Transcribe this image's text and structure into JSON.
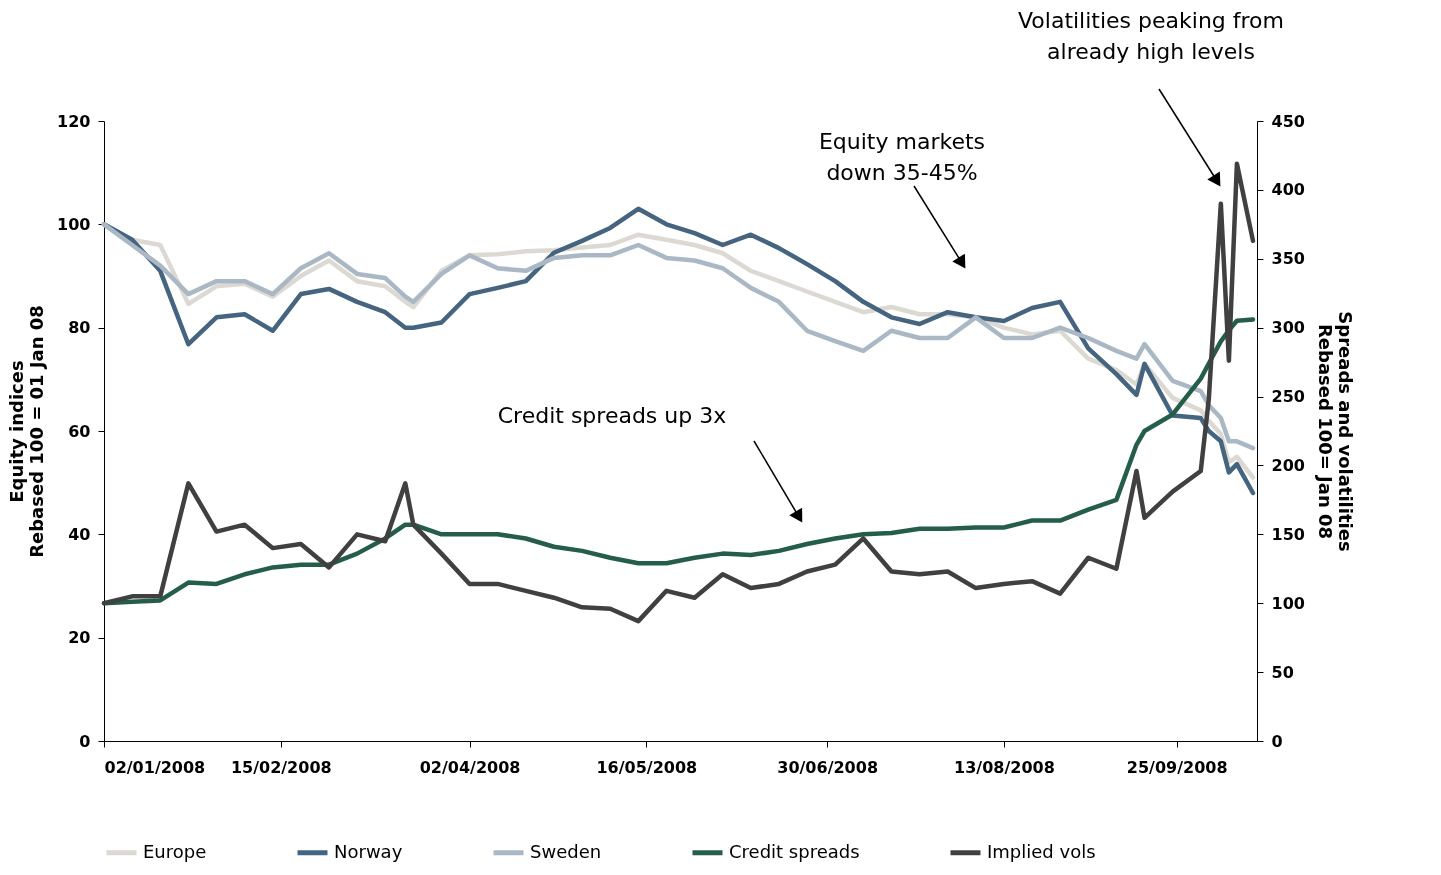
{
  "chart_data": {
    "type": "line",
    "ylabel": "Equity indices\nRebased 100 = 01 Jan 08",
    "y2label": "Spreads and volatilities\nRebased 100= Jan 08",
    "x": [
      "2008-01-02",
      "2008-01-09",
      "2008-01-16",
      "2008-01-23",
      "2008-01-30",
      "2008-02-06",
      "2008-02-13",
      "2008-02-20",
      "2008-02-27",
      "2008-03-05",
      "2008-03-12",
      "2008-03-17",
      "2008-03-19",
      "2008-03-26",
      "2008-04-02",
      "2008-04-09",
      "2008-04-16",
      "2008-04-23",
      "2008-04-30",
      "2008-05-07",
      "2008-05-14",
      "2008-05-21",
      "2008-05-28",
      "2008-06-04",
      "2008-06-11",
      "2008-06-18",
      "2008-06-25",
      "2008-07-02",
      "2008-07-09",
      "2008-07-16",
      "2008-07-23",
      "2008-07-30",
      "2008-08-06",
      "2008-08-13",
      "2008-08-20",
      "2008-08-27",
      "2008-09-03",
      "2008-09-10",
      "2008-09-15",
      "2008-09-17",
      "2008-09-24",
      "2008-10-01",
      "2008-10-03",
      "2008-10-06",
      "2008-10-08",
      "2008-10-10",
      "2008-10-14"
    ],
    "series": [
      {
        "name": "Europe",
        "color": "#dcd9d2",
        "values": [
          100,
          97,
          96,
          84.6,
          88,
          88.5,
          86,
          90,
          93,
          89,
          88,
          85,
          84,
          91,
          94,
          94.2,
          94.8,
          95,
          95.5,
          96,
          98,
          97,
          96,
          94.4,
          91,
          89,
          87,
          85,
          83,
          84,
          82.6,
          82.6,
          82,
          80,
          78.7,
          79.4,
          74,
          71.8,
          69,
          73,
          66.4,
          64,
          62,
          59.4,
          54,
          55,
          51
        ]
      },
      {
        "name": "Norway",
        "color": "#45647f",
        "values": [
          100,
          97,
          91,
          76.8,
          82,
          82.6,
          79.4,
          86.5,
          87.5,
          85,
          83,
          80,
          80,
          81,
          86.5,
          87.7,
          89,
          94.5,
          96.8,
          99.3,
          103,
          100,
          98.3,
          96,
          98,
          95.4,
          92.3,
          89,
          85,
          82,
          80.7,
          83,
          82,
          81.3,
          83.8,
          85,
          76,
          71,
          67,
          73,
          63,
          62.5,
          60,
          58,
          52,
          53.6,
          48
        ]
      },
      {
        "name": "Sweden",
        "color": "#a9b8c4",
        "values": [
          100,
          96,
          92,
          86.5,
          89,
          89,
          86.5,
          91.5,
          94.4,
          90.4,
          89.6,
          86,
          85,
          90.4,
          94,
          91.5,
          91,
          93.5,
          94,
          94,
          96,
          93.5,
          93,
          91.5,
          87.7,
          85,
          79.4,
          77.4,
          75.5,
          79.4,
          78,
          78,
          82,
          78,
          78,
          80,
          78,
          75.5,
          74,
          76.8,
          69.7,
          67.7,
          65,
          62.5,
          58,
          58,
          56.7
        ]
      },
      {
        "name": "Credit spreads",
        "color": "#255e48",
        "axis": "y2",
        "values": [
          100,
          101,
          102,
          115,
          114,
          121,
          126,
          128,
          128,
          136,
          147,
          157,
          157,
          150,
          150,
          150,
          147,
          141,
          138,
          133,
          129,
          129,
          133,
          136,
          135,
          138,
          143,
          147,
          150,
          151,
          154,
          154,
          155,
          155,
          160,
          160,
          168,
          175,
          215,
          225,
          237,
          263,
          274,
          290,
          298,
          305,
          306
        ]
      },
      {
        "name": "Implied vols",
        "color": "#404040",
        "axis": "y2",
        "values": [
          100,
          105,
          105,
          187,
          152,
          157,
          140,
          143,
          126,
          150,
          145,
          187,
          157,
          136,
          114,
          114,
          109,
          104,
          97,
          96,
          87,
          109,
          104,
          121,
          111,
          114,
          123,
          128,
          147,
          123,
          121,
          123,
          111,
          114,
          116,
          107,
          133,
          125,
          196,
          162,
          181,
          196,
          248,
          390,
          276,
          419,
          363
        ]
      }
    ],
    "xlim": [
      "2008-01-02",
      "2008-10-15"
    ],
    "xticks": [
      {
        "value": "2008-01-02",
        "label": "02/01/2008"
      },
      {
        "value": "2008-02-15",
        "label": "15/02/2008"
      },
      {
        "value": "2008-04-02",
        "label": "02/04/2008"
      },
      {
        "value": "2008-05-16",
        "label": "16/05/2008"
      },
      {
        "value": "2008-06-30",
        "label": "30/06/2008"
      },
      {
        "value": "2008-08-13",
        "label": "13/08/2008"
      },
      {
        "value": "2008-09-25",
        "label": "25/09/2008"
      }
    ],
    "ylim": [
      0,
      120
    ],
    "yticks": [
      0,
      20,
      40,
      60,
      80,
      100,
      120
    ],
    "y2lim": [
      0,
      450
    ],
    "y2ticks": [
      0,
      50,
      100,
      150,
      200,
      250,
      300,
      350,
      400,
      450
    ],
    "annotations": [
      "Equity markets\ndown 35-45%",
      "Credit spreads up 3x",
      "Volatilities peaking from\nalready high levels"
    ],
    "grid": false,
    "legend": "bottom",
    "marker": "none",
    "line_style": "solid"
  }
}
